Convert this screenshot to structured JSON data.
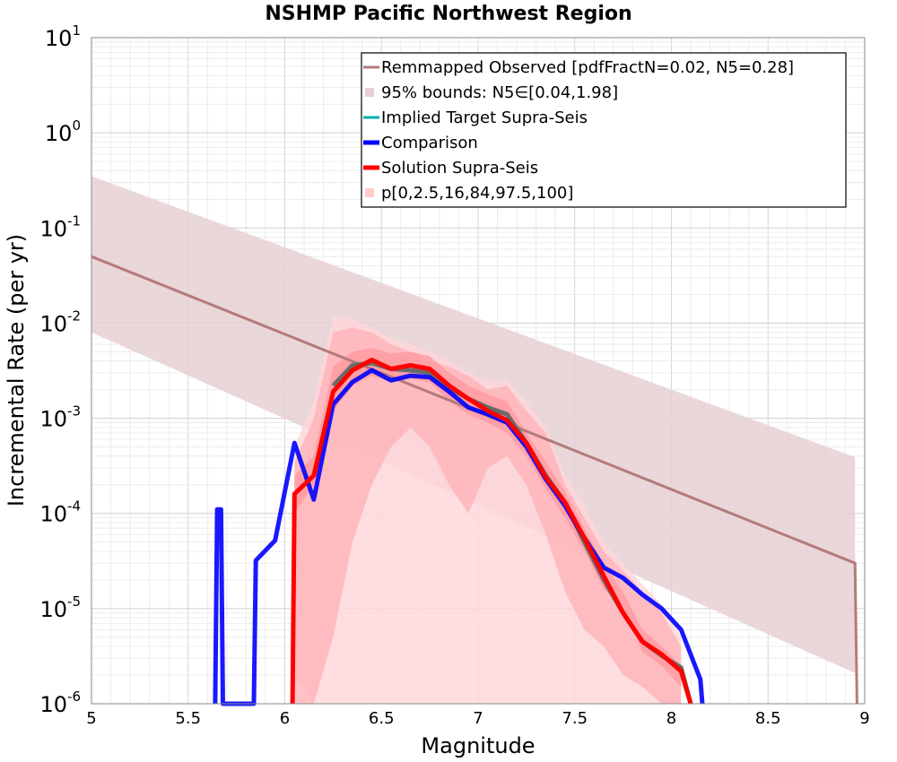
{
  "chart_data": {
    "type": "line",
    "title": "NSHMP Pacific Northwest Region",
    "xlabel": "Magnitude",
    "ylabel": "Incremental Rate (per yr)",
    "xlim": [
      5,
      9
    ],
    "ylim": [
      1e-06,
      10
    ],
    "y_scale": "log",
    "grid": true,
    "legend_position": "top-right",
    "x_ticks": [
      "5",
      "5.5",
      "6",
      "6.5",
      "7",
      "7.5",
      "8",
      "8.5",
      "9"
    ],
    "x_tick_values": [
      5,
      5.5,
      6,
      6.5,
      7,
      7.5,
      8,
      8.5,
      9
    ],
    "y_ticks": [
      {
        "base": "10",
        "exp": "-6",
        "value": 1e-06
      },
      {
        "base": "10",
        "exp": "-5",
        "value": 1e-05
      },
      {
        "base": "10",
        "exp": "-4",
        "value": 0.0001
      },
      {
        "base": "10",
        "exp": "-3",
        "value": 0.001
      },
      {
        "base": "10",
        "exp": "-2",
        "value": 0.01
      },
      {
        "base": "10",
        "exp": "-1",
        "value": 0.1
      },
      {
        "base": "10",
        "exp": "0",
        "value": 1
      },
      {
        "base": "10",
        "exp": "1",
        "value": 10
      }
    ],
    "legend": [
      {
        "label": "Remmapped Observed [pdfFractN=0.02, N5=0.28]",
        "color": "#b47a7a",
        "kind": "line"
      },
      {
        "label": "95% bounds: N5∈[0.04,1.98]",
        "color": "#e6d0d3",
        "kind": "band"
      },
      {
        "label": "Implied Target Supra-Seis",
        "color": "#00b0b0",
        "kind": "line"
      },
      {
        "label": "Comparison",
        "color": "#0000ff",
        "kind": "line"
      },
      {
        "label": "Solution Supra-Seis",
        "color": "#ff0000",
        "kind": "line"
      },
      {
        "label": "p[0,2.5,16,84,97.5,100]",
        "color": "#ffcccc",
        "kind": "band"
      }
    ],
    "observed_bounds": {
      "name": "95% bounds: N5∈[0.04,1.98]",
      "color": "#e6d0d3",
      "x": [
        5.0,
        8.95,
        8.95
      ],
      "lower": [
        0.008,
        2.1e-06,
        2.1e-06
      ],
      "upper": [
        0.35,
        0.00039,
        0.00039
      ]
    },
    "observed": {
      "name": "Remmapped Observed [pdfFractN=0.02, N5=0.28]",
      "color": "#b47a7a",
      "x": [
        5.0,
        8.95,
        8.96
      ],
      "y": [
        0.05,
        3e-05,
        1e-06
      ]
    },
    "solution_bands": [
      {
        "name": "p0-100",
        "color": "#ffd6d9",
        "x": [
          6.05,
          6.15,
          6.25,
          6.35,
          6.45,
          6.55,
          6.65,
          6.75,
          6.85,
          6.95,
          7.05,
          7.15,
          7.25,
          7.35,
          7.45,
          7.55,
          7.65,
          7.75,
          7.85,
          7.95,
          8.05
        ],
        "lower": [
          2e-06,
          1e-06,
          1e-06,
          1e-06,
          1e-06,
          1e-06,
          1e-06,
          1e-06,
          1e-06,
          1e-06,
          1e-06,
          1e-06,
          1e-06,
          1e-06,
          1e-06,
          1e-06,
          1e-06,
          1e-06,
          1e-06,
          1e-06,
          1e-06
        ],
        "upper": [
          0.0005,
          0.0015,
          0.012,
          0.011,
          0.009,
          0.007,
          0.006,
          0.005,
          0.004,
          0.003,
          0.0025,
          0.0025,
          0.0015,
          0.0008,
          0.00025,
          0.00012,
          5e-05,
          3e-05,
          1.8e-05,
          1.1e-05,
          5e-06
        ]
      },
      {
        "name": "p2.5-97.5",
        "color": "#ffb3b8",
        "x": [
          6.05,
          6.15,
          6.25,
          6.35,
          6.45,
          6.55,
          6.65,
          6.75,
          6.85,
          6.95,
          7.05,
          7.15,
          7.25,
          7.35,
          7.45,
          7.55,
          7.65,
          7.75,
          7.85,
          7.95,
          8.05
        ],
        "lower": [
          1e-06,
          1e-06,
          5e-06,
          5e-05,
          0.0002,
          0.0005,
          0.0008,
          0.0005,
          0.0002,
          0.0001,
          0.0003,
          0.0004,
          0.0002,
          6e-05,
          1.5e-05,
          6e-06,
          4e-06,
          2e-06,
          1.5e-06,
          1e-06,
          1e-06
        ],
        "upper": [
          0.00035,
          0.001,
          0.008,
          0.009,
          0.008,
          0.006,
          0.005,
          0.004,
          0.0035,
          0.0028,
          0.002,
          0.0022,
          0.0012,
          0.0007,
          0.0002,
          9e-05,
          4e-05,
          2.5e-05,
          1.5e-05,
          9e-06,
          4e-06
        ]
      },
      {
        "name": "p16-84",
        "color": "#ff9aa0",
        "x": [
          6.05,
          6.15,
          6.25,
          6.35,
          6.45,
          6.55,
          6.65,
          6.75,
          6.85,
          6.95,
          7.05,
          7.15,
          7.25,
          7.35,
          7.45,
          7.55,
          7.65,
          7.75,
          7.85,
          7.95,
          8.05
        ],
        "lower": [
          0.0001,
          0.0002,
          0.0012,
          0.0022,
          0.0028,
          0.0024,
          0.0026,
          0.0024,
          0.0015,
          0.0011,
          0.0009,
          0.0007,
          0.0004,
          0.00018,
          9e-05,
          4e-05,
          1.6e-05,
          1e-05,
          3.5e-06,
          2.5e-06,
          1.5e-06
        ],
        "upper": [
          0.00025,
          0.0004,
          0.0035,
          0.005,
          0.0055,
          0.0048,
          0.005,
          0.0045,
          0.003,
          0.0022,
          0.0018,
          0.0015,
          0.0007,
          0.00035,
          0.00017,
          7e-05,
          3e-05,
          1.5e-05,
          6e-06,
          4e-06,
          2.5e-06
        ]
      }
    ],
    "series": [
      {
        "name": "Implied Target Supra-Seis",
        "color": "#6b6b6b",
        "x": [
          6.25,
          6.35,
          6.45,
          6.55,
          6.65,
          6.75,
          6.85,
          6.95,
          7.05,
          7.15,
          7.25,
          7.35,
          7.45,
          7.55,
          7.65,
          7.75,
          7.85,
          7.95,
          8.05,
          8.1
        ],
        "y": [
          0.0022,
          0.0036,
          0.0038,
          0.0033,
          0.0032,
          0.003,
          0.0021,
          0.0016,
          0.0013,
          0.0011,
          0.00055,
          0.00025,
          0.00013,
          5e-05,
          2e-05,
          9e-06,
          4.5e-06,
          3.2e-06,
          2.4e-06,
          1e-06
        ]
      },
      {
        "name": "Comparison",
        "color": "#0000ff",
        "x": [
          5.64,
          5.65,
          5.67,
          5.68,
          5.84,
          5.85,
          5.95,
          6.05,
          6.15,
          6.25,
          6.35,
          6.45,
          6.55,
          6.65,
          6.75,
          6.85,
          6.95,
          7.05,
          7.15,
          7.25,
          7.35,
          7.45,
          7.55,
          7.65,
          7.75,
          7.85,
          7.95,
          8.05,
          8.15,
          8.16
        ],
        "y": [
          1e-06,
          0.00011,
          0.00011,
          1e-06,
          1e-06,
          3.2e-05,
          5.2e-05,
          0.00055,
          0.00014,
          0.0014,
          0.0024,
          0.0032,
          0.0025,
          0.0028,
          0.0027,
          0.0019,
          0.0013,
          0.0011,
          0.0009,
          0.0005,
          0.00023,
          0.00012,
          5.5e-05,
          2.7e-05,
          2.1e-05,
          1.4e-05,
          1e-05,
          6e-06,
          1.8e-06,
          1e-06
        ]
      },
      {
        "name": "Solution Supra-Seis",
        "color": "#ff0000",
        "x": [
          6.04,
          6.05,
          6.15,
          6.25,
          6.35,
          6.45,
          6.55,
          6.65,
          6.75,
          6.85,
          6.95,
          7.05,
          7.15,
          7.25,
          7.35,
          7.45,
          7.55,
          7.65,
          7.75,
          7.85,
          7.95,
          8.05,
          8.1
        ],
        "y": [
          1e-06,
          0.00016,
          0.00025,
          0.0019,
          0.0032,
          0.0041,
          0.0033,
          0.0036,
          0.0033,
          0.0022,
          0.0016,
          0.0012,
          0.00095,
          0.00055,
          0.00024,
          0.00013,
          5.5e-05,
          2.2e-05,
          9e-06,
          4.5e-06,
          3.3e-06,
          2.2e-06,
          1e-06
        ]
      }
    ]
  }
}
